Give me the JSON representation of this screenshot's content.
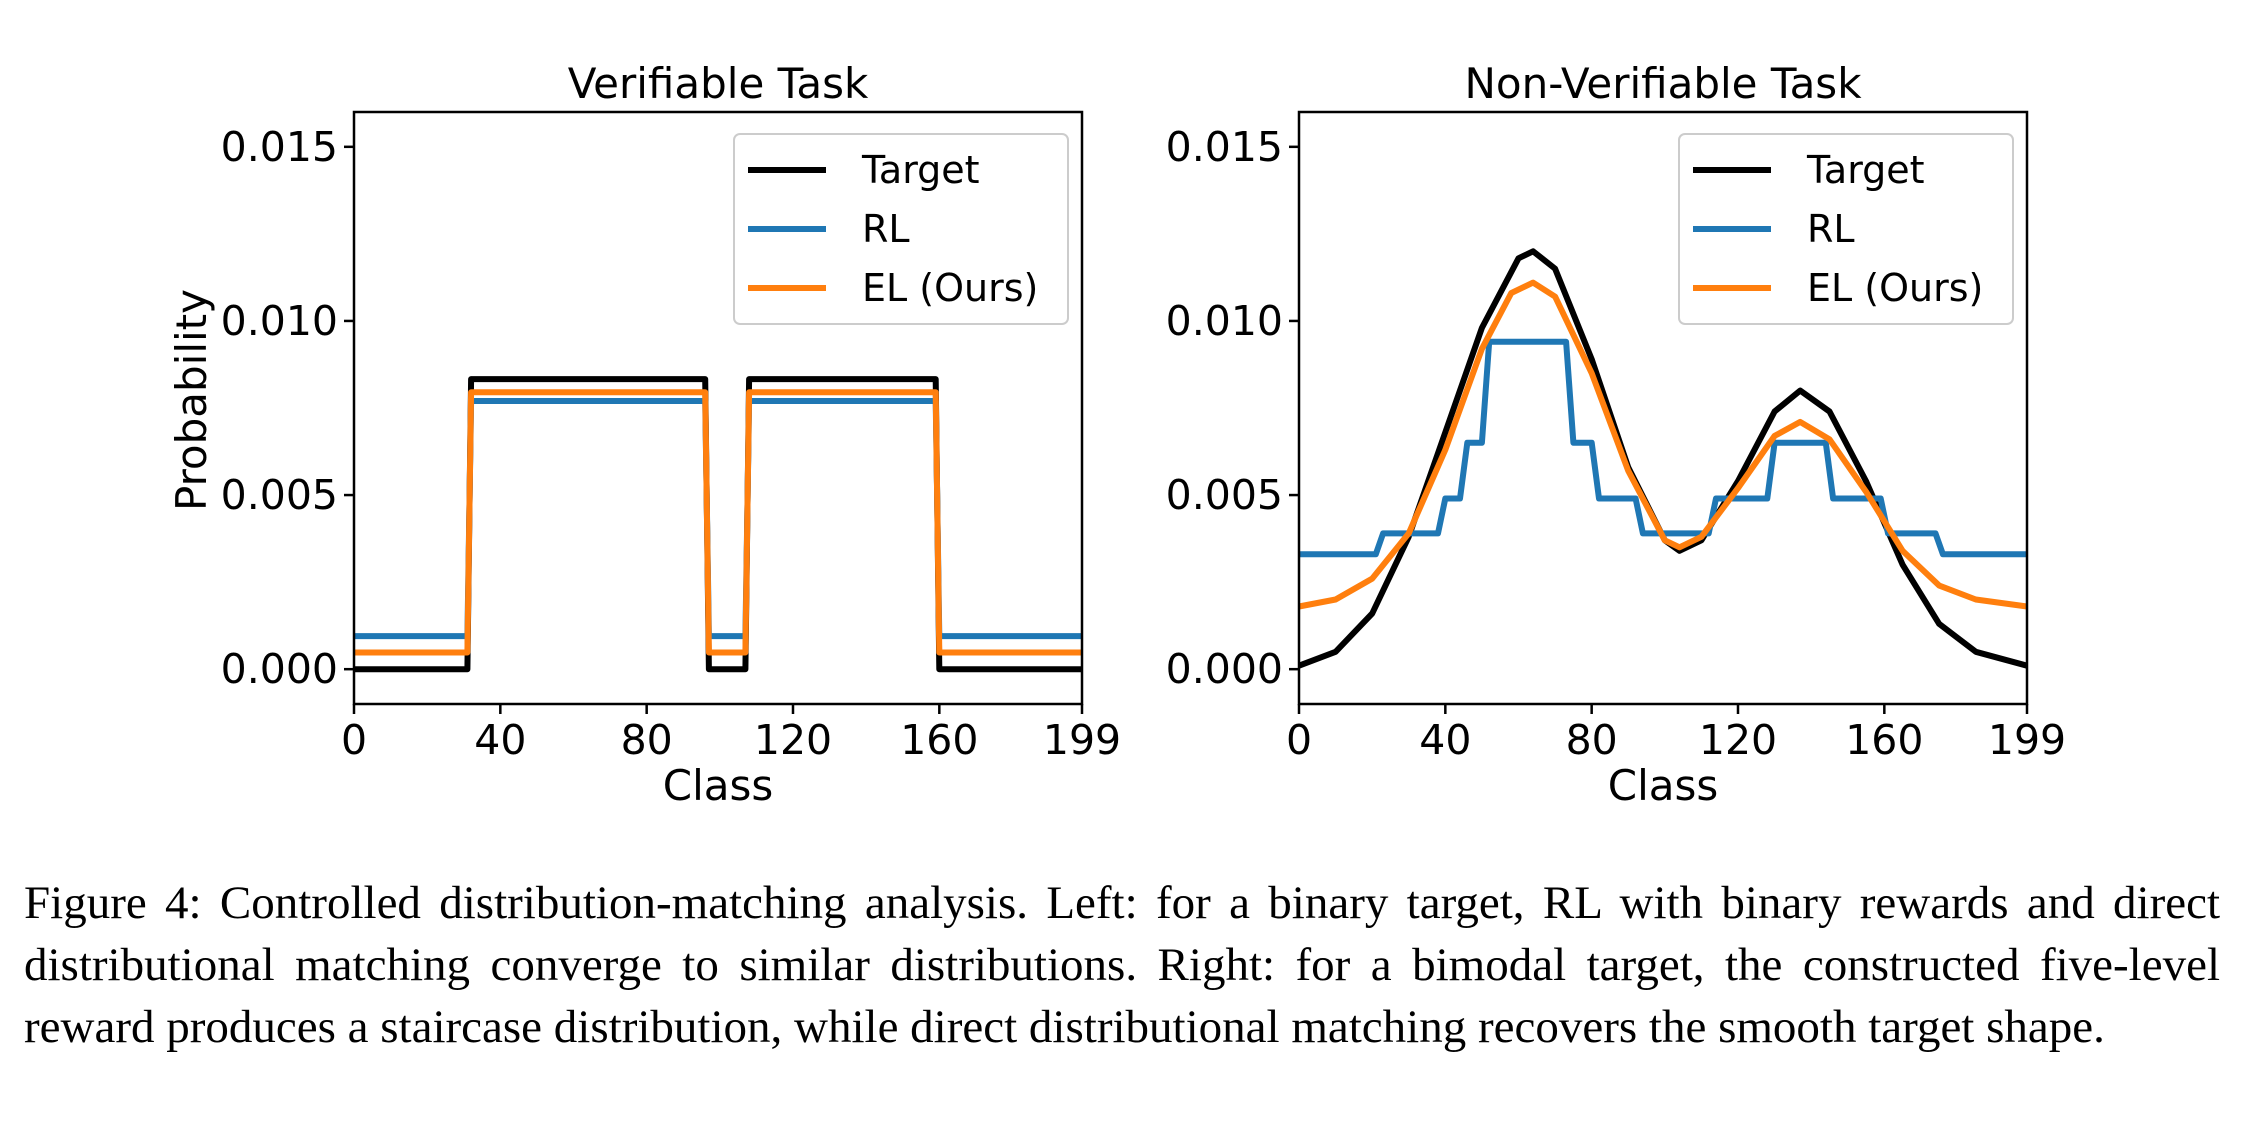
{
  "caption": "Figure 4: Controlled distribution-matching analysis. Left: for a binary target, RL with binary rewards and direct distributional matching converge to similar distributions. Right: for a bimodal target, the constructed five-level reward produces a staircase distribution, while direct distributional matching recovers the smooth target shape.",
  "colors": {
    "target": "#000000",
    "rl": "#1f77b4",
    "el": "#ff7f0e"
  },
  "chart_data": [
    {
      "type": "line",
      "title": "Verifiable Task",
      "xlabel": "Class",
      "ylabel": "Probability",
      "xlim": [
        0,
        199
      ],
      "ylim": [
        -0.001,
        0.016
      ],
      "xticks": [
        0,
        40,
        80,
        120,
        160,
        199
      ],
      "yticks": [
        0.0,
        0.005,
        0.01,
        0.015
      ],
      "ytick_labels": [
        "0.000",
        "0.005",
        "0.010",
        "0.015"
      ],
      "grid": false,
      "legend": "top-right",
      "series": [
        {
          "name": "Target",
          "color": "#000000",
          "points": [
            [
              0,
              0.0
            ],
            [
              31,
              0.0
            ],
            [
              32,
              0.00833
            ],
            [
              96,
              0.00833
            ],
            [
              97,
              0.0
            ],
            [
              107,
              0.0
            ],
            [
              108,
              0.00833
            ],
            [
              159,
              0.00833
            ],
            [
              160,
              0.0
            ],
            [
              199,
              0.0
            ]
          ]
        },
        {
          "name": "RL",
          "color": "#1f77b4",
          "points": [
            [
              0,
              0.00095
            ],
            [
              31,
              0.00095
            ],
            [
              32,
              0.0077
            ],
            [
              96,
              0.0077
            ],
            [
              97,
              0.00095
            ],
            [
              107,
              0.00095
            ],
            [
              108,
              0.0077
            ],
            [
              159,
              0.0077
            ],
            [
              160,
              0.00095
            ],
            [
              199,
              0.00095
            ]
          ]
        },
        {
          "name": "EL (Ours)",
          "color": "#ff7f0e",
          "points": [
            [
              0,
              0.00048
            ],
            [
              31,
              0.00048
            ],
            [
              32,
              0.00795
            ],
            [
              96,
              0.00795
            ],
            [
              97,
              0.00048
            ],
            [
              107,
              0.00048
            ],
            [
              108,
              0.00795
            ],
            [
              159,
              0.00795
            ],
            [
              160,
              0.00048
            ],
            [
              199,
              0.00048
            ]
          ]
        }
      ]
    },
    {
      "type": "line",
      "title": "Non-Verifiable Task",
      "xlabel": "Class",
      "ylabel": "",
      "xlim": [
        0,
        199
      ],
      "ylim": [
        -0.001,
        0.016
      ],
      "xticks": [
        0,
        40,
        80,
        120,
        160,
        199
      ],
      "yticks": [
        0.0,
        0.005,
        0.01,
        0.015
      ],
      "ytick_labels": [
        "0.000",
        "0.005",
        "0.010",
        "0.015"
      ],
      "grid": false,
      "legend": "top-right",
      "series": [
        {
          "name": "Target",
          "color": "#000000",
          "points": [
            [
              0,
              0.0001
            ],
            [
              10,
              0.0005
            ],
            [
              20,
              0.0016
            ],
            [
              30,
              0.0038
            ],
            [
              40,
              0.0068
            ],
            [
              50,
              0.0098
            ],
            [
              60,
              0.0118
            ],
            [
              64,
              0.012
            ],
            [
              70,
              0.0115
            ],
            [
              80,
              0.0089
            ],
            [
              90,
              0.0058
            ],
            [
              100,
              0.0037
            ],
            [
              104,
              0.0034
            ],
            [
              110,
              0.0037
            ],
            [
              120,
              0.0054
            ],
            [
              130,
              0.0074
            ],
            [
              137,
              0.008
            ],
            [
              145,
              0.0074
            ],
            [
              155,
              0.0054
            ],
            [
              165,
              0.003
            ],
            [
              175,
              0.0013
            ],
            [
              185,
              0.0005
            ],
            [
              199,
              0.0001
            ]
          ]
        },
        {
          "name": "RL",
          "color": "#1f77b4",
          "points": [
            [
              0,
              0.0033
            ],
            [
              21,
              0.0033
            ],
            [
              23,
              0.0039
            ],
            [
              38,
              0.0039
            ],
            [
              40,
              0.0049
            ],
            [
              44,
              0.0049
            ],
            [
              46,
              0.0065
            ],
            [
              50,
              0.0065
            ],
            [
              52,
              0.0094
            ],
            [
              73,
              0.0094
            ],
            [
              75,
              0.0065
            ],
            [
              80,
              0.0065
            ],
            [
              82,
              0.0049
            ],
            [
              92,
              0.0049
            ],
            [
              94,
              0.0039
            ],
            [
              112,
              0.0039
            ],
            [
              114,
              0.0049
            ],
            [
              128,
              0.0049
            ],
            [
              130,
              0.0065
            ],
            [
              144,
              0.0065
            ],
            [
              146,
              0.0049
            ],
            [
              159,
              0.0049
            ],
            [
              161,
              0.0039
            ],
            [
              174,
              0.0039
            ],
            [
              176,
              0.0033
            ],
            [
              199,
              0.0033
            ]
          ]
        },
        {
          "name": "EL (Ours)",
          "color": "#ff7f0e",
          "points": [
            [
              0,
              0.0018
            ],
            [
              10,
              0.002
            ],
            [
              20,
              0.0026
            ],
            [
              30,
              0.0039
            ],
            [
              40,
              0.0063
            ],
            [
              50,
              0.0092
            ],
            [
              58,
              0.0108
            ],
            [
              64,
              0.0111
            ],
            [
              70,
              0.0107
            ],
            [
              80,
              0.0085
            ],
            [
              90,
              0.0057
            ],
            [
              100,
              0.0037
            ],
            [
              104,
              0.0035
            ],
            [
              110,
              0.0038
            ],
            [
              120,
              0.0052
            ],
            [
              130,
              0.0067
            ],
            [
              137,
              0.0071
            ],
            [
              145,
              0.0066
            ],
            [
              155,
              0.0051
            ],
            [
              165,
              0.0034
            ],
            [
              175,
              0.0024
            ],
            [
              185,
              0.002
            ],
            [
              199,
              0.0018
            ]
          ]
        }
      ]
    }
  ]
}
